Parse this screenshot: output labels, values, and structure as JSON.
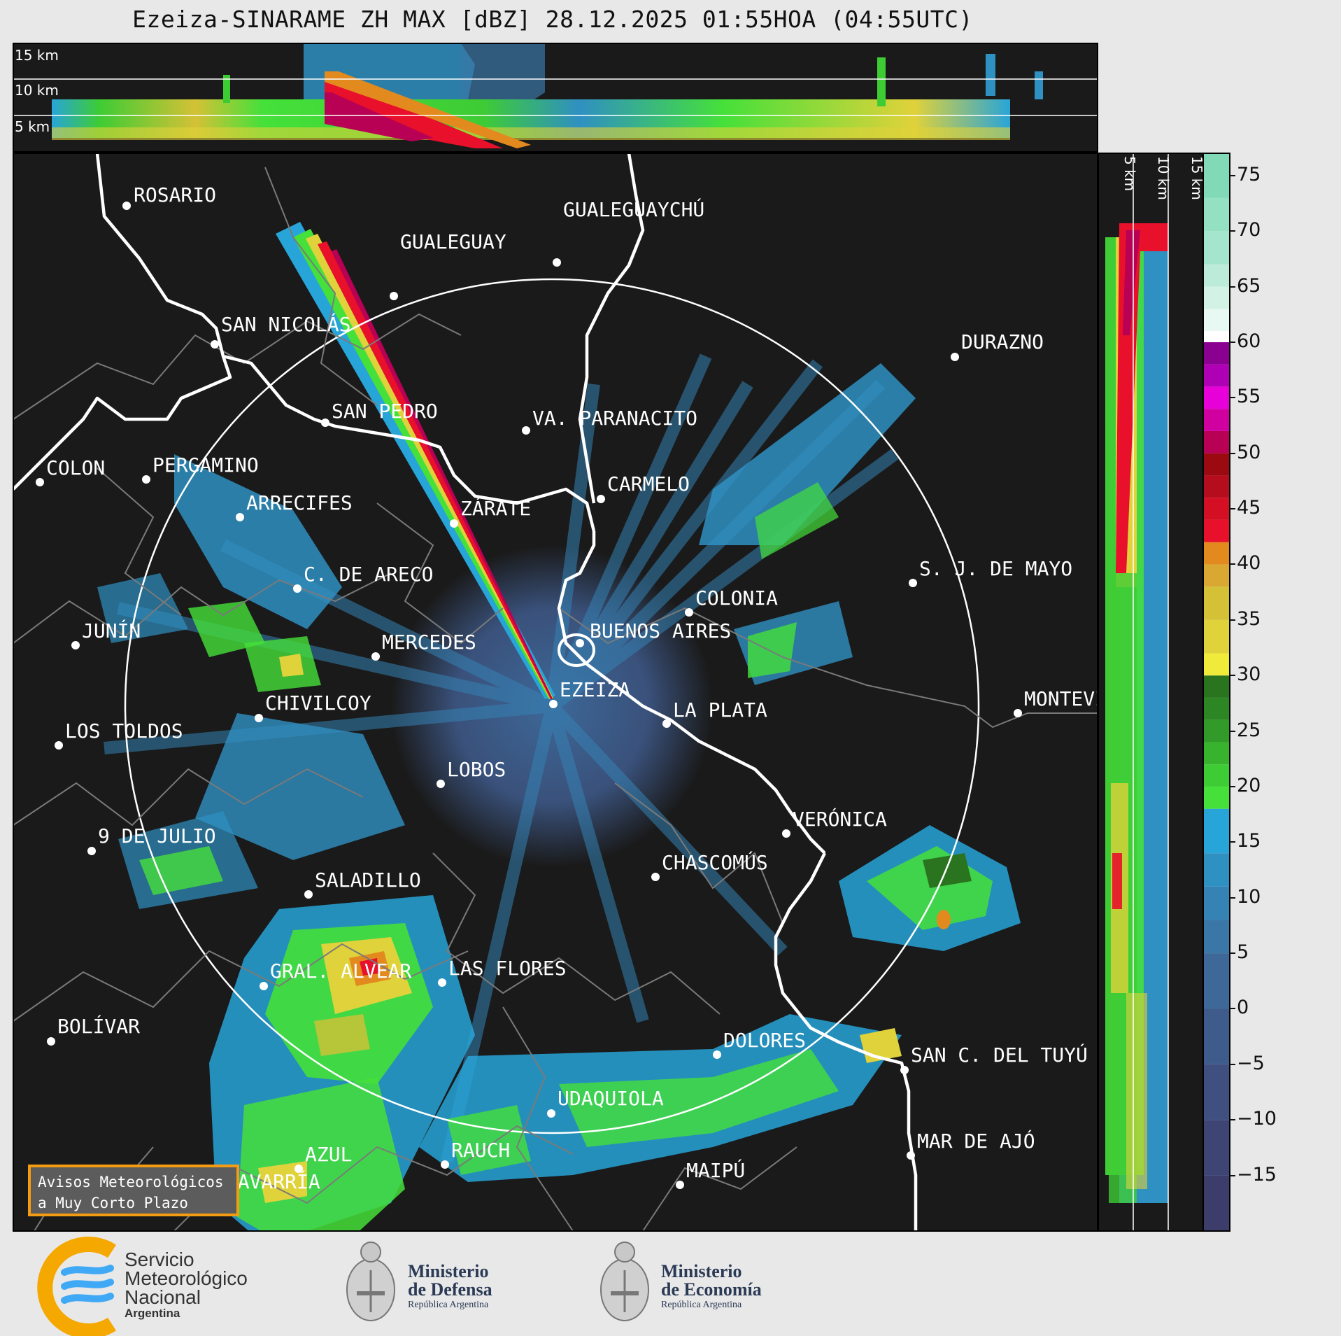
{
  "title": "Ezeiza-SINARAME ZH MAX [dBZ] 28.12.2025 01:55HOA (04:55UTC)",
  "height_labels": {
    "top": [
      "15 km",
      "10 km",
      "5 km"
    ],
    "side": [
      "5 km",
      "10 km",
      "15 km"
    ]
  },
  "cities": [
    {
      "name": "ROSARIO"
    },
    {
      "name": "GUALEGUAYCHÚ"
    },
    {
      "name": "GUALEGUAY"
    },
    {
      "name": "SAN NICOLÁS"
    },
    {
      "name": "DURAZNO"
    },
    {
      "name": "SAN PEDRO"
    },
    {
      "name": "VA. PARANACITO"
    },
    {
      "name": "COLON"
    },
    {
      "name": "PERGAMINO"
    },
    {
      "name": "CARMELO"
    },
    {
      "name": "ARRECIFES"
    },
    {
      "name": "ZÁRATE"
    },
    {
      "name": "S. J. DE MAYO"
    },
    {
      "name": "C. DE ARECO"
    },
    {
      "name": "COLONIA"
    },
    {
      "name": "JUNÍN"
    },
    {
      "name": "BUENOS AIRES"
    },
    {
      "name": "MERCEDES"
    },
    {
      "name": "MONTEVIDEO"
    },
    {
      "name": "EZEIZA"
    },
    {
      "name": "CHIVILCOY"
    },
    {
      "name": "LA PLATA"
    },
    {
      "name": "LOS TOLDOS"
    },
    {
      "name": "LOBOS"
    },
    {
      "name": "VERÓNICA"
    },
    {
      "name": "9 DE JULIO"
    },
    {
      "name": "CHASCOMÚS"
    },
    {
      "name": "SALADILLO"
    },
    {
      "name": "GRAL. ALVEAR"
    },
    {
      "name": "LAS FLORES"
    },
    {
      "name": "BOLÍVAR"
    },
    {
      "name": "DOLORES"
    },
    {
      "name": "SAN C. DEL TUYÚ"
    },
    {
      "name": "UDAQUIOLA"
    },
    {
      "name": "MAR DE AJÓ"
    },
    {
      "name": "AZUL"
    },
    {
      "name": "RAUCH"
    },
    {
      "name": "OLAVARRÍA"
    },
    {
      "name": "MAIPÚ"
    }
  ],
  "colorbar": {
    "unit": "dBZ",
    "min": -20,
    "max": 77,
    "ticks": [
      75,
      70,
      65,
      60,
      55,
      50,
      45,
      40,
      35,
      30,
      25,
      20,
      15,
      10,
      5,
      0,
      -5,
      -10,
      -15
    ],
    "tick_labels": [
      "75",
      "70",
      "65",
      "60",
      "55",
      "50",
      "45",
      "40",
      "35",
      "30",
      "25",
      "20",
      "15",
      "10",
      "5",
      "0",
      "−5",
      "−10",
      "−15"
    ],
    "bands": [
      {
        "from": -20,
        "to": -15,
        "color": "#3c3d6b"
      },
      {
        "from": -15,
        "to": -10,
        "color": "#3e4575"
      },
      {
        "from": -10,
        "to": -5,
        "color": "#3f4f80"
      },
      {
        "from": -5,
        "to": 0,
        "color": "#3f5b8c"
      },
      {
        "from": 0,
        "to": 5,
        "color": "#3d6898"
      },
      {
        "from": 5,
        "to": 8,
        "color": "#3a77a6"
      },
      {
        "from": 8,
        "to": 11,
        "color": "#3582b4"
      },
      {
        "from": 11,
        "to": 14,
        "color": "#2f90c2"
      },
      {
        "from": 14,
        "to": 18,
        "color": "#28a5d8"
      },
      {
        "from": 18,
        "to": 20,
        "color": "#45e03a"
      },
      {
        "from": 20,
        "to": 22,
        "color": "#3ecc34"
      },
      {
        "from": 22,
        "to": 24,
        "color": "#38b32e"
      },
      {
        "from": 24,
        "to": 26,
        "color": "#329a29"
      },
      {
        "from": 26,
        "to": 28,
        "color": "#2c8624"
      },
      {
        "from": 28,
        "to": 30,
        "color": "#2a7420"
      },
      {
        "from": 30,
        "to": 32,
        "color": "#f0eb3a"
      },
      {
        "from": 32,
        "to": 35,
        "color": "#e0d23a"
      },
      {
        "from": 35,
        "to": 38,
        "color": "#d4c136"
      },
      {
        "from": 38,
        "to": 40,
        "color": "#d8a833"
      },
      {
        "from": 40,
        "to": 42,
        "color": "#e38a1f"
      },
      {
        "from": 42,
        "to": 44,
        "color": "#e8102a"
      },
      {
        "from": 44,
        "to": 46,
        "color": "#d40f24"
      },
      {
        "from": 46,
        "to": 48,
        "color": "#b50d1e"
      },
      {
        "from": 48,
        "to": 50,
        "color": "#9a0a10"
      },
      {
        "from": 50,
        "to": 52,
        "color": "#b80055"
      },
      {
        "from": 52,
        "to": 54,
        "color": "#d000a0"
      },
      {
        "from": 54,
        "to": 56,
        "color": "#e800d8"
      },
      {
        "from": 56,
        "to": 58,
        "color": "#b000b5"
      },
      {
        "from": 58,
        "to": 60,
        "color": "#8a0090"
      },
      {
        "from": 60,
        "to": 61,
        "color": "#ffffff"
      },
      {
        "from": 61,
        "to": 63,
        "color": "#e8f8f2"
      },
      {
        "from": 63,
        "to": 65,
        "color": "#d2f2e6"
      },
      {
        "from": 65,
        "to": 67,
        "color": "#bcebd9"
      },
      {
        "from": 67,
        "to": 70,
        "color": "#a6e5cd"
      },
      {
        "from": 70,
        "to": 73,
        "color": "#94e0c3"
      },
      {
        "from": 73,
        "to": 77,
        "color": "#82d9b7"
      }
    ]
  },
  "alert_box": {
    "line1": "Avisos Meteorológicos",
    "line2": "a Muy Corto Plazo"
  },
  "logos": {
    "smn": {
      "line1": "Servicio",
      "line2": "Meteorológico",
      "line3": "Nacional",
      "line4": "Argentina"
    },
    "defensa": {
      "line1": "Ministerio",
      "line2": "de Defensa",
      "line3": "República Argentina"
    },
    "economia": {
      "line1": "Ministerio",
      "line2": "de Economía",
      "line3": "República Argentina"
    }
  }
}
